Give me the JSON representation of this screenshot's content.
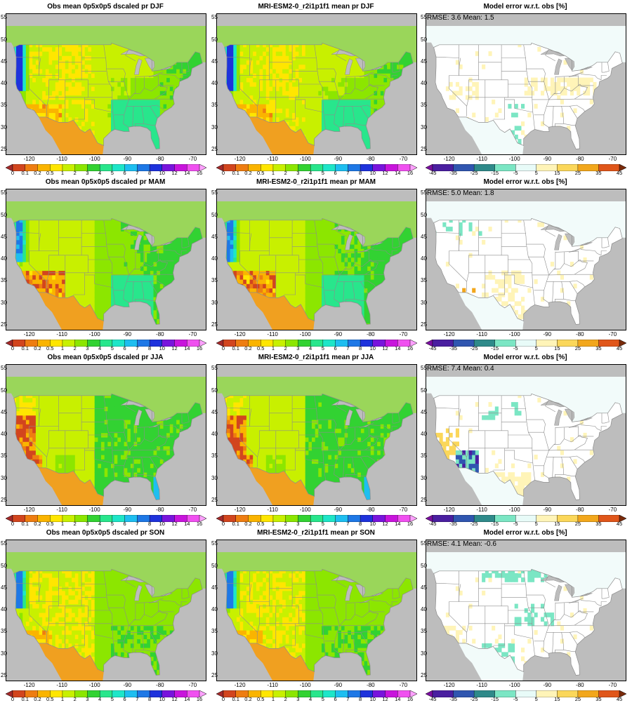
{
  "figure": {
    "rows": [
      {
        "season": "DJF",
        "obs_title": "Obs mean 0p5x0p5 dscaled pr DJF",
        "model_title": "MRI-ESM2-0_r2i1p1f1 mean pr DJF",
        "error_title": "Model error w.r.t. obs [%]",
        "stats": "RMSE: 3.6  Mean: 1.5"
      },
      {
        "season": "MAM",
        "obs_title": "Obs mean 0p5x0p5 dscaled pr MAM",
        "model_title": "MRI-ESM2-0_r2i1p1f1 mean pr MAM",
        "error_title": "Model error w.r.t. obs [%]",
        "stats": "RMSE: 5.0  Mean: 1.8"
      },
      {
        "season": "JJA",
        "obs_title": "Obs mean 0p5x0p5 dscaled pr JJA",
        "model_title": "MRI-ESM2-0_r2i1p1f1 mean pr JJA",
        "error_title": "Model error w.r.t. obs [%]",
        "stats": "RMSE: 7.4  Mean: 0.4"
      },
      {
        "season": "SON",
        "obs_title": "Obs mean 0p5x0p5 dscaled pr SON",
        "model_title": "MRI-ESM2-0_r2i1p1f1 mean pr SON",
        "error_title": "Model error w.r.t. obs [%]",
        "stats": "RMSE: 4.1  Mean: -0.6"
      }
    ],
    "lat_ticks": [
      "55",
      "50",
      "45",
      "40",
      "35",
      "30",
      "25"
    ],
    "lon_ticks": [
      "-120",
      "-110",
      "-100",
      "-90",
      "-80",
      "-70"
    ],
    "pr_colorbar": {
      "labels": [
        "0",
        "0.1",
        "0.2",
        "0.5",
        "1",
        "2",
        "3",
        "4",
        "5",
        "6",
        "7",
        "8",
        "10",
        "12",
        "14",
        "16"
      ],
      "colors": [
        "#a52a2a",
        "#d2451e",
        "#ee7d11",
        "#fab400",
        "#ffe600",
        "#c8f000",
        "#8ce600",
        "#32d232",
        "#28e68c",
        "#1ee6c8",
        "#1ebef0",
        "#1e78e6",
        "#1e32dc",
        "#7814dc",
        "#c814dc",
        "#f050f0",
        "#ffa0ff"
      ]
    },
    "err_colorbar": {
      "labels": [
        "-45",
        "-35",
        "-25",
        "-15",
        "-5",
        "5",
        "15",
        "25",
        "35",
        "45"
      ],
      "colors": [
        "#7b0fa0",
        "#4a1fa0",
        "#3056b0",
        "#2f8a8a",
        "#7be6c4",
        "#e8fbf8",
        "#fff4b8",
        "#fbd75a",
        "#f2a71c",
        "#e0561a",
        "#7a2a0a"
      ]
    },
    "colors": {
      "ocean": "#bdbdbd",
      "border": "#8c8c8c",
      "nodata": "#bdbdbd"
    }
  }
}
